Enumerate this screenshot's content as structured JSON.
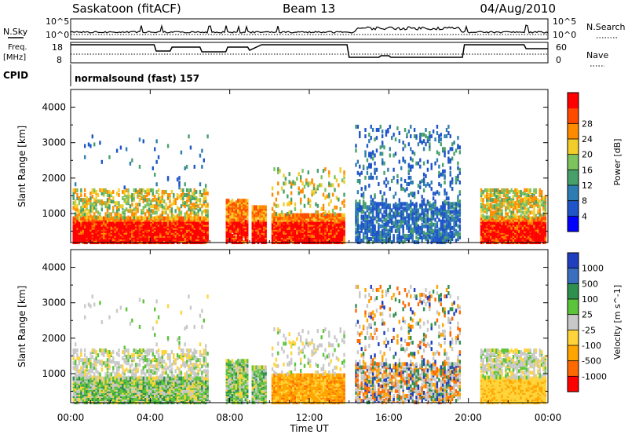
{
  "header": {
    "station": "Saskatoon (fitACF)",
    "beam": "Beam 13",
    "date": "04/Aug/2010"
  },
  "labels": {
    "nsky": "N.Sky",
    "nsearch": "N.Search",
    "freq_line1": "Freq.",
    "freq_line2": "[MHz]",
    "nave": "Nave",
    "cpid": "CPID",
    "cpid_value": "normalsound (fast) 157",
    "time_label": "Time UT",
    "range_label": "Slant Range [km]"
  },
  "noise_axis": {
    "left_ticks": [
      "10^5",
      "10^0"
    ],
    "right_ticks": [
      "10^5",
      "10^0"
    ]
  },
  "freq_axis": {
    "left_ticks": [
      "18",
      "8"
    ],
    "right_ticks": [
      "60",
      "0"
    ]
  },
  "chart_data": [
    {
      "type": "heatmap",
      "title": "",
      "xlabel": "Time UT",
      "ylabel": "Slant Range [km]",
      "x_ticks": [
        "00:00",
        "04:00",
        "08:00",
        "12:00",
        "16:00",
        "20:00",
        "00:00"
      ],
      "y_ticks": [
        "1000",
        "2000",
        "3000",
        "4000"
      ],
      "xlim_hours": [
        0,
        24
      ],
      "ylim_km": [
        180,
        4500
      ],
      "colorbar": {
        "label": "Power [dB]",
        "ticks": [
          "4",
          "8",
          "12",
          "16",
          "20",
          "24",
          "28"
        ],
        "colors": [
          "#0000ff",
          "#1f55c8",
          "#2e7db2",
          "#47a06a",
          "#7cc25e",
          "#f2cd2a",
          "#ff8c00",
          "#ff4a00",
          "#ff0000"
        ]
      }
    },
    {
      "type": "heatmap",
      "title": "",
      "xlabel": "Time UT",
      "ylabel": "Slant Range [km]",
      "x_ticks": [
        "00:00",
        "04:00",
        "08:00",
        "12:00",
        "16:00",
        "20:00",
        "00:00"
      ],
      "y_ticks": [
        "1000",
        "2000",
        "3000",
        "4000"
      ],
      "xlim_hours": [
        0,
        24
      ],
      "ylim_km": [
        180,
        4500
      ],
      "colorbar": {
        "label": "Velocity [m s^-1]",
        "ticks": [
          "1000",
          "500",
          "100",
          "25",
          "-25",
          "-100",
          "-500",
          "-1000"
        ],
        "colors": [
          "#1f3fbf",
          "#3a6fc0",
          "#2f8f4f",
          "#5cc43a",
          "#c8c8c8",
          "#ffd43b",
          "#ffa500",
          "#ff6a00",
          "#ff0000"
        ]
      }
    }
  ]
}
